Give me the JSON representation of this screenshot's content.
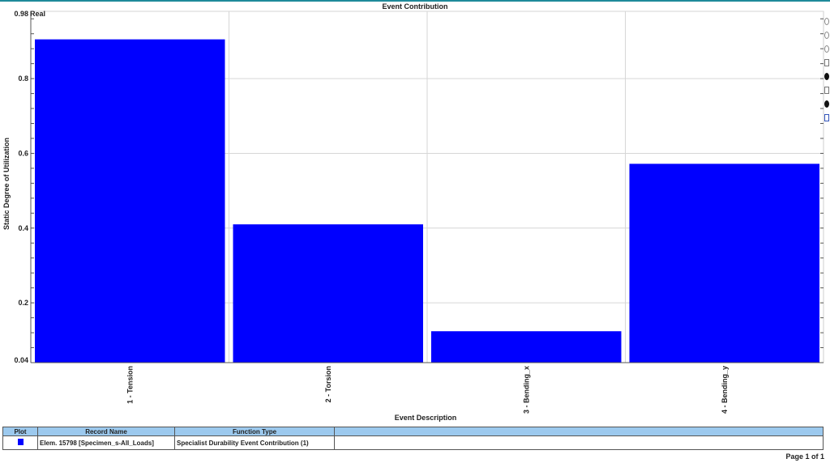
{
  "chart_data": {
    "type": "bar",
    "title": "Event Contribution",
    "mode_label": "Real",
    "xlabel": "Event Description",
    "ylabel": "Static Degree of Utilization",
    "categories": [
      "1 - Tension",
      "2 - Torsion",
      "3 - Bending_x",
      "4 - Bending_y"
    ],
    "series": [
      {
        "values": [
          0.905,
          0.41,
          0.124,
          0.572
        ]
      }
    ],
    "ylim": [
      0.04,
      0.98
    ],
    "yticks": [
      "0.98",
      "0.8",
      "0.6",
      "0.4",
      "0.2",
      "0.04"
    ],
    "ytick_values": [
      0.98,
      0.8,
      0.6,
      0.4,
      0.2,
      0.04
    ],
    "grid": true,
    "bar_color": "#0000ff"
  },
  "legend_table": {
    "headers": [
      "Plot",
      "Record Name",
      "Function Type"
    ],
    "rows": [
      {
        "color": "#0000ff",
        "record_name": "Elem. 15798 [Specimen_s-All_Loads]",
        "function_type": "Specialist Durability Event Contribution (1)"
      }
    ]
  },
  "page_info": "Page 1 of 1"
}
